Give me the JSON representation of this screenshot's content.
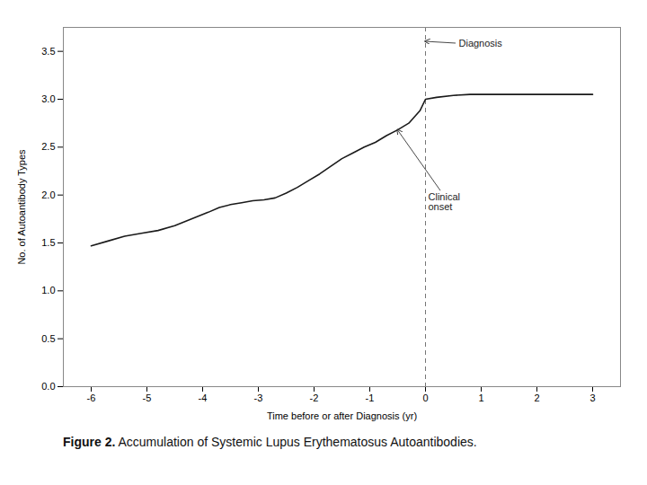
{
  "chart_data": {
    "type": "line",
    "x": [
      -6,
      -5.7,
      -5.4,
      -5.1,
      -4.8,
      -4.5,
      -4.2,
      -3.9,
      -3.7,
      -3.5,
      -3.3,
      -3.1,
      -2.9,
      -2.7,
      -2.5,
      -2.3,
      -2.1,
      -1.9,
      -1.7,
      -1.5,
      -1.3,
      -1.1,
      -0.9,
      -0.7,
      -0.5,
      -0.3,
      -0.1,
      0.0,
      0.2,
      0.5,
      0.8,
      1.0,
      1.5,
      2.0,
      2.5,
      3.0
    ],
    "values": [
      1.47,
      1.52,
      1.57,
      1.6,
      1.63,
      1.68,
      1.75,
      1.82,
      1.87,
      1.9,
      1.92,
      1.94,
      1.95,
      1.97,
      2.02,
      2.08,
      2.15,
      2.22,
      2.3,
      2.38,
      2.44,
      2.5,
      2.55,
      2.62,
      2.68,
      2.75,
      2.88,
      3.0,
      3.02,
      3.04,
      3.05,
      3.05,
      3.05,
      3.05,
      3.05,
      3.05
    ],
    "color": "#1a1a1a",
    "xlim": [
      -6.5,
      3.5
    ],
    "ylim": [
      0.0,
      3.75
    ],
    "xticks": [
      -6,
      -5,
      -4,
      -3,
      -2,
      -1,
      0,
      1,
      2,
      3
    ],
    "yticks": [
      {
        "value": 0.0,
        "label": "0.0"
      },
      0.5,
      {
        "value": 1.0,
        "label": "1.0"
      },
      1.5,
      {
        "value": 2.0,
        "label": "2.0"
      },
      2.5,
      {
        "value": 3.0,
        "label": "3.0"
      },
      3.5
    ],
    "xlabel": "Time before or after Diagnosis (yr)",
    "ylabel": "No. of Autoantibody Types",
    "grid": false,
    "annotations": [
      {
        "text": "Diagnosis",
        "x": 0,
        "y": 3.6,
        "line_style": "dashed"
      },
      {
        "text": "Clinical\nonset",
        "x": -0.5,
        "y": 2.68
      }
    ],
    "caption": "Figure 2. Accumulation of Systemic Lupus Erythematosus Autoantibodies."
  }
}
